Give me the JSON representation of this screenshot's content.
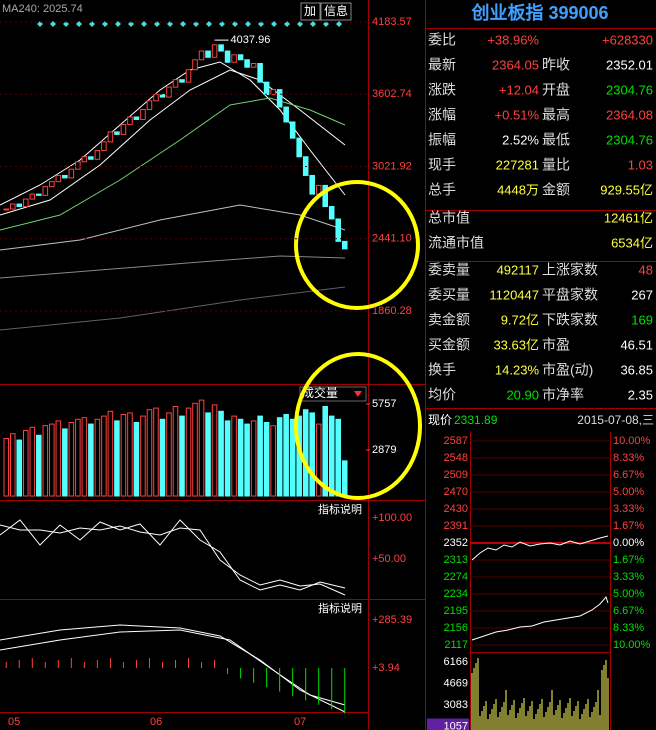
{
  "toolbar": {
    "ma_label": "MA240: 2025.74",
    "buttons": [
      "加",
      "信息"
    ]
  },
  "main": {
    "price_ticks": [
      4183.57,
      3602.74,
      3021.92,
      {
        "value": 2441.1,
        "label": "2441.10"
      },
      1860.28
    ],
    "peak": 4037.96,
    "closes": [
      2680,
      2720,
      2700,
      2760,
      2800,
      2790,
      2860,
      2900,
      2950,
      2930,
      3000,
      3060,
      3100,
      3080,
      3150,
      3220,
      3300,
      3280,
      3360,
      3420,
      3400,
      3480,
      3550,
      3600,
      3580,
      3660,
      3720,
      3700,
      3800,
      3880,
      3950,
      3900,
      4000,
      3950,
      3860,
      3920,
      3880,
      3820,
      3850,
      3700,
      3600,
      3640,
      3500,
      3380,
      3250,
      3100,
      2950,
      2800,
      2870,
      2700,
      2600,
      2420,
      2360
    ]
  },
  "volume": {
    "title": "成交量",
    "ticks": [
      5757,
      2879
    ],
    "values": [
      3600,
      3900,
      3500,
      4100,
      4300,
      3800,
      4400,
      4500,
      4700,
      4200,
      4600,
      4800,
      4900,
      4500,
      4800,
      5000,
      5300,
      4700,
      5100,
      5200,
      4600,
      5000,
      5400,
      5500,
      4800,
      5200,
      5600,
      5000,
      5500,
      5800,
      6000,
      5200,
      5700,
      5300,
      4700,
      5000,
      4800,
      4500,
      4700,
      5000,
      4600,
      4400,
      4900,
      5100,
      4800,
      5000,
      5400,
      5200,
      4500,
      5600,
      5000,
      4800,
      2200
    ]
  },
  "indicator1": {
    "button": "指标说明",
    "ticks": [
      "+100.00",
      "+50.00"
    ]
  },
  "indicator2": {
    "button": "指标说明",
    "ticks": [
      "+285.39",
      "+3.94"
    ]
  },
  "months": [
    "05",
    "06",
    "07"
  ],
  "quote": {
    "title": "创业板指 399006",
    "rows": [
      {
        "l1": "委比",
        "v1": "+38.96%",
        "c1": "#ff4040",
        "v2": "+628330",
        "c2": "#ff4040"
      },
      {
        "l1": "最新",
        "v1": "2364.05",
        "c1": "#ff4040",
        "l2": "昨收",
        "v2": "2352.01",
        "c2": "#ffffff"
      },
      {
        "l1": "涨跌",
        "v1": "+12.04",
        "c1": "#ff4040",
        "l2": "开盘",
        "v2": "2304.76",
        "c2": "#00e000"
      },
      {
        "l1": "涨幅",
        "v1": "+0.51%",
        "c1": "#ff4040",
        "l2": "最高",
        "v2": "2364.08",
        "c2": "#ff4040"
      },
      {
        "l1": "振幅",
        "v1": "2.52%",
        "c1": "#ffffff",
        "l2": "最低",
        "v2": "2304.76",
        "c2": "#00e000"
      },
      {
        "l1": "现手",
        "v1": "227281",
        "c1": "#ffff40",
        "l2": "量比",
        "v2": "1.03",
        "c2": "#ff4040"
      },
      {
        "l1": "总手",
        "v1": "4448万",
        "c1": "#ffff40",
        "l2": "金额",
        "v2": "929.55亿",
        "c2": "#ffff40"
      },
      {
        "l1": "总市值",
        "v2": "12461亿",
        "c2": "#ffff40"
      },
      {
        "l1": "流通市值",
        "v2": "6534亿",
        "c2": "#ffff40"
      },
      {
        "l1": "委卖量",
        "v1": "492117",
        "c1": "#ffff40",
        "l2": "上涨家数",
        "v2": "48",
        "c2": "#ff4040"
      },
      {
        "l1": "委买量",
        "v1": "1120447",
        "c1": "#ffff40",
        "l2": "平盘家数",
        "v2": "267",
        "c2": "#ffffff"
      },
      {
        "l1": "卖金额",
        "v1": "9.72亿",
        "c1": "#ffff40",
        "l2": "下跌家数",
        "v2": "169",
        "c2": "#00e000"
      },
      {
        "l1": "买金额",
        "v1": "33.63亿",
        "c1": "#ffff40",
        "l2": "市盈",
        "v2": "46.51",
        "c2": "#ffffff"
      },
      {
        "l1": "换手",
        "v1": "14.23%",
        "c1": "#ffff40",
        "l2": "市盈(动)",
        "v2": "36.85",
        "c2": "#ffffff"
      },
      {
        "l1": "均价",
        "v1": "20.90",
        "c1": "#00e000",
        "l2": "市净率",
        "v2": "2.35",
        "c2": "#ffffff"
      }
    ]
  },
  "intraday": {
    "price_label": "现价",
    "price": "2331.89",
    "date": "2015-07-08,三",
    "prices": [
      "2587",
      "2548",
      "2509",
      "2470",
      "2430",
      "2391",
      "2352",
      "2313",
      "2274",
      "2234",
      "2195",
      "2156",
      "2117"
    ],
    "percents": [
      "10.00%",
      "8.33%",
      "6.67%",
      "5.00%",
      "3.33%",
      "1.67%",
      "0.00%",
      "1.67%",
      "3.33%",
      "5.00%",
      "6.67%",
      "8.33%",
      "10.00%"
    ],
    "volume_ticks": [
      "6166",
      "4669",
      "3083",
      "1057"
    ]
  }
}
